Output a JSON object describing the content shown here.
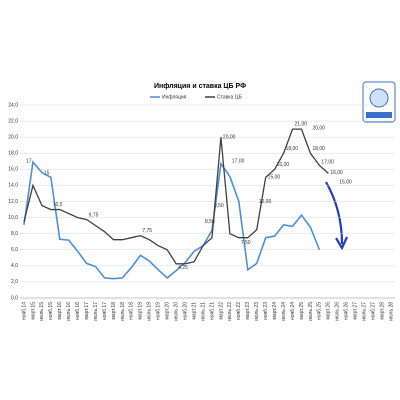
{
  "chart_data": {
    "type": "line",
    "title": "Инфляция и ставка ЦБ РФ",
    "categories": [
      "нояб.14",
      "март.15",
      "июль.15",
      "нояб.15",
      "март.16",
      "июль.16",
      "нояб.16",
      "март.17",
      "июль.17",
      "нояб.17",
      "март.18",
      "июль.18",
      "нояб.18",
      "март.19",
      "июль.19",
      "нояб.19",
      "март.20",
      "июль.20",
      "нояб.20",
      "март.21",
      "июль.21",
      "нояб.21",
      "март.22",
      "июль.22",
      "нояб.22",
      "март.23",
      "июль.23",
      "нояб.23",
      "март.24",
      "июль.24",
      "нояб.24",
      "март.25",
      "июль.25",
      "нояб.25",
      "март.26",
      "июль.26",
      "нояб.26",
      "март.27",
      "июль.27",
      "нояб.27",
      "март.28",
      "июль.28"
    ],
    "series": [
      {
        "name": "Инфляция",
        "color": "#4a90d9",
        "values": [
          9.1,
          16.9,
          15.6,
          15.0,
          7.3,
          7.2,
          5.8,
          4.3,
          3.9,
          2.5,
          2.4,
          2.5,
          3.8,
          5.3,
          4.6,
          3.5,
          2.5,
          3.4,
          4.4,
          5.8,
          6.5,
          8.4,
          16.7,
          15.1,
          12.0,
          3.5,
          4.3,
          7.5,
          7.7,
          9.1,
          8.9,
          10.3,
          8.8,
          6.0,
          null,
          null,
          null,
          null,
          null,
          null,
          null,
          null
        ]
      },
      {
        "name": "Ставка ЦБ",
        "color": "#404040",
        "values": [
          9.5,
          14,
          11.5,
          11,
          11,
          10.5,
          10,
          9.75,
          9,
          8.25,
          7.25,
          7.25,
          7.5,
          7.75,
          7.25,
          6.5,
          6,
          4.25,
          4.25,
          4.5,
          6.5,
          7.5,
          20,
          8,
          7.5,
          7.5,
          8.5,
          15,
          16,
          18,
          21,
          21,
          18,
          16.5,
          15.5,
          null,
          null,
          null,
          null,
          null,
          null,
          null
        ]
      }
    ],
    "ylim": [
      0,
      24
    ],
    "yticks": [
      {
        "value": 0,
        "label": "0,0"
      },
      {
        "value": 2,
        "label": "2,0"
      },
      {
        "value": 4,
        "label": "4,0"
      },
      {
        "value": 6,
        "label": "6,0"
      },
      {
        "value": 8,
        "label": "8,0"
      },
      {
        "value": 10,
        "label": "10,0"
      },
      {
        "value": 12,
        "label": "12,0"
      },
      {
        "value": 14,
        "label": "14,0"
      },
      {
        "value": 16,
        "label": "16,0"
      },
      {
        "value": 18,
        "label": "18,0"
      },
      {
        "value": 20,
        "label": "20,0"
      },
      {
        "value": 22,
        "label": "22,0"
      },
      {
        "value": 24,
        "label": "24,0"
      }
    ],
    "grid": true,
    "annotations": [
      {
        "text": "17",
        "x": "нояб.14",
        "y": 17,
        "color": "#c00000"
      },
      {
        "text": "15",
        "x": "июль.15",
        "y": 15.5,
        "color": "#2e9e2e"
      },
      {
        "text": "10,5",
        "x": "нояб.15",
        "y": 11.6,
        "color": "#2e9e2e"
      },
      {
        "text": "9,75",
        "x": "март.17",
        "y": 10.3,
        "color": "#2e9e2e"
      },
      {
        "text": "7,75",
        "x": "март.19",
        "y": 8.4,
        "color": "#c00000"
      },
      {
        "text": "4,25",
        "x": "июль.20",
        "y": 3.8,
        "color": "#2e9e2e"
      },
      {
        "text": "8,50",
        "x": "июль.21",
        "y": 9.5,
        "color": "#c00000"
      },
      {
        "text": "9,50",
        "x": "нояб.21",
        "y": 11.5,
        "color": "#c00000"
      },
      {
        "text": "20,00",
        "x": "март.22",
        "y": 20,
        "color": "#c00000"
      },
      {
        "text": "17,00",
        "x": "июль.22",
        "y": 17,
        "color": "#2e9e2e"
      },
      {
        "text": "7,50",
        "x": "нояб.22",
        "y": 6.9,
        "color": "#2e9e2e"
      },
      {
        "text": "12,00",
        "x": "июль.23",
        "y": 12,
        "color": "#c00000"
      },
      {
        "text": "15,00",
        "x": "нояб.23",
        "y": 15,
        "color": "#c00000"
      },
      {
        "text": "16,00",
        "x": "март.24",
        "y": 16.6,
        "color": "#c00000"
      },
      {
        "text": "18,00",
        "x": "июль.24",
        "y": 18.6,
        "color": "#c00000"
      },
      {
        "text": "21,00",
        "x": "нояб.24",
        "y": 21.6,
        "color": "#c00000"
      },
      {
        "text": "20,00",
        "x": "июль.25",
        "y": 21.1,
        "color": "#2e9e2e"
      },
      {
        "text": "18,00",
        "x": "июль.25",
        "y": 18.6,
        "color": "#2e9e2e"
      },
      {
        "text": "17,00",
        "x": "нояб.25",
        "y": 16.9,
        "color": "#2e9e2e"
      },
      {
        "text": "16,00",
        "x": "март.26",
        "y": 15.6,
        "color": "#2e9e2e"
      },
      {
        "text": "15,00",
        "x": "июль.26",
        "y": 14.4,
        "color": "#2e9e2e"
      }
    ]
  }
}
